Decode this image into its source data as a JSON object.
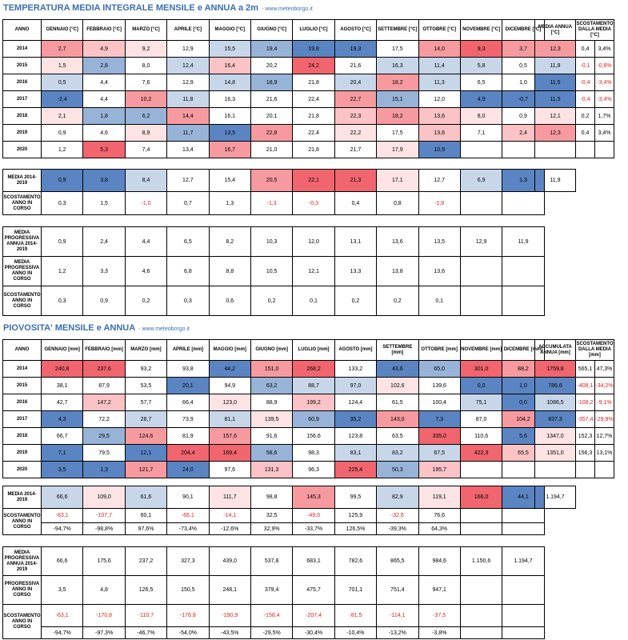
{
  "temp": {
    "title": "TEMPERATURA MEDIA INTEGRALE MENSILE e ANNUA a 2m",
    "source": "- www.meteoborgo.it",
    "headers": [
      "ANNO",
      "GENNAIO [°C]",
      "FEBBRAIO [°C]",
      "MARZO [°C]",
      "APRILE [°C]",
      "MAGGIO [°C]",
      "GIUGNO [°C]",
      "LUGLIO [°C]",
      "AGOSTO [°C]",
      "SETTEMBRE [°C]",
      "OTTOBRE [°C]",
      "NOVEMBRE [°C]",
      "DICEMBRE [°C]"
    ],
    "side_headers": [
      "MEDIA ANNUA [°C]",
      "SCOSTAMENTO DALLA MEDIA [°C]"
    ],
    "rows": [
      {
        "year": "2014",
        "v": [
          "2,7",
          "4,9",
          "9,2",
          "12,9",
          "15,5",
          "19,4",
          "19,8",
          "19,3",
          "17,5",
          "14,0",
          "9,3",
          "3,7"
        ],
        "c": [
          "r2",
          "r1",
          "r0",
          "n",
          "l1",
          "b2",
          "b3",
          "b3",
          "n",
          "r2",
          "r3",
          "r2"
        ],
        "avg": "12,3",
        "avgc": "r2",
        "d": "0,4",
        "p": "3,4%",
        "dn": false
      },
      {
        "year": "2015",
        "v": [
          "1,5",
          "2,8",
          "8,0",
          "12,4",
          "16,4",
          "20,2",
          "24,2",
          "21,6",
          "16,3",
          "11,4",
          "5,8",
          "0,5"
        ],
        "c": [
          "r0",
          "b2",
          "n",
          "l1",
          "r1",
          "n",
          "r3",
          "n",
          "l1",
          "l1",
          "l1",
          "n"
        ],
        "avg": "11,8",
        "avgc": "l1",
        "d": "-0,1",
        "p": "-0,8%",
        "dn": true
      },
      {
        "year": "2016",
        "v": [
          "0,5",
          "4,4",
          "7,6",
          "12,9",
          "14,8",
          "18,9",
          "21,8",
          "20,4",
          "18,2",
          "11,3",
          "6,5",
          "1,0"
        ],
        "c": [
          "l1",
          "n",
          "n",
          "n",
          "l1",
          "b2",
          "n",
          "l1",
          "r2",
          "l1",
          "n",
          "n"
        ],
        "avg": "11,5",
        "avgc": "b3",
        "d": "-0,4",
        "p": "-3,4%",
        "dn": true
      },
      {
        "year": "2017",
        "v": [
          "-2,4",
          "4,4",
          "10,2",
          "11,8",
          "16,3",
          "21,6",
          "22,4",
          "22,7",
          "15,1",
          "12,0",
          "4,9",
          "-0,7"
        ],
        "c": [
          "b3",
          "n",
          "r2",
          "l1",
          "n",
          "n",
          "n",
          "r2",
          "b2",
          "n",
          "b3",
          "b3"
        ],
        "avg": "11,5",
        "avgc": "b3",
        "d": "-0,4",
        "p": "-3,4%",
        "dn": true
      },
      {
        "year": "2018",
        "v": [
          "2,1",
          "1,8",
          "6,2",
          "14,4",
          "16,1",
          "20,1",
          "21,8",
          "22,3",
          "18,2",
          "13,6",
          "8,0",
          "0,9"
        ],
        "c": [
          "r0",
          "b2",
          "b2",
          "r2",
          "n",
          "n",
          "n",
          "r1",
          "r2",
          "r1",
          "r0",
          "n"
        ],
        "avg": "12,1",
        "avgc": "r0",
        "d": "0,2",
        "p": "1,7%",
        "dn": false
      },
      {
        "year": "2019",
        "v": [
          "0,9",
          "4,6",
          "8,9",
          "11,7",
          "13,5",
          "22,8",
          "22,4",
          "22,2",
          "17,5",
          "13,6",
          "7,1",
          "2,4"
        ],
        "c": [
          "n",
          "n",
          "r0",
          "b2",
          "b3",
          "r2",
          "n",
          "r0",
          "n",
          "r1",
          "n",
          "r1"
        ],
        "avg": "12,3",
        "avgc": "r2",
        "d": "0,4",
        "p": "3,4%",
        "dn": false
      },
      {
        "year": "2020",
        "v": [
          "1,2",
          "5,3",
          "7,4",
          "13,4",
          "16,7",
          "21,0",
          "21,8",
          "21,7",
          "17,9",
          "10,9",
          "",
          ""
        ],
        "c": [
          "n",
          "r3",
          "n",
          "n",
          "r2",
          "n",
          "n",
          "n",
          "r0",
          "b3",
          "n",
          "n"
        ],
        "avg": "",
        "avgc": "e",
        "d": "",
        "p": "",
        "dn": false
      }
    ],
    "media": {
      "label": "MEDIA 2014-2019",
      "v": [
        "0,9",
        "3,8",
        "8,4",
        "12,7",
        "15,4",
        "20,5",
        "22,1",
        "21,3",
        "17,1",
        "12,7",
        "6,9",
        "1,3"
      ],
      "c": [
        "b3",
        "b3",
        "l1",
        "n",
        "n",
        "r2",
        "r3",
        "r3",
        "r0",
        "n",
        "l1",
        "b3"
      ],
      "total": "11,9"
    },
    "scost": {
      "label": "SCOSTAMENTO ANNO IN CORSO",
      "v": [
        "0,3",
        "1,5",
        "-1,0",
        "0,7",
        "1,3",
        "-1,3",
        "-0,3",
        "0,4",
        "0,8",
        "-1,8",
        "",
        ""
      ]
    },
    "prog": [
      {
        "label": "MEDIA PROGRESSIVA ANNUA 2014-2019",
        "v": [
          "0,9",
          "2,4",
          "4,4",
          "6,5",
          "8,2",
          "10,3",
          "12,0",
          "13,1",
          "13,6",
          "13,5",
          "12,9",
          "11,9"
        ]
      },
      {
        "label": "MEDIA PROGRESSIVA ANNO IN CORSO",
        "v": [
          "1,2",
          "3,3",
          "4,6",
          "6,8",
          "8,8",
          "10,5",
          "12,1",
          "13,3",
          "13,8",
          "13,6",
          "",
          ""
        ]
      },
      {
        "label": "SCOSTAMENTO ANNO IN CORSO",
        "v": [
          "0,3",
          "0,9",
          "0,2",
          "0,3",
          "0,6",
          "0,2",
          "0,1",
          "0,2",
          "0,2",
          "0,1",
          "",
          ""
        ]
      }
    ]
  },
  "rain": {
    "title": "PIOVOSITA' MENSILE e ANNUA",
    "source": "- www.meteoborgo.it",
    "headers": [
      "ANNO",
      "GENNAIO [mm]",
      "FEBBRAIO [mm]",
      "MARZO [mm]",
      "APRILE [mm]",
      "MAGGIO [mm]",
      "GIUGNO [mm]",
      "LUGLIO [mm]",
      "AGOSTO [mm]",
      "SETTEMBRE [mm]",
      "OTTOBRE [mm]",
      "NOVEMBRE [mm]",
      "DICEMBRE [mm]"
    ],
    "side_headers": [
      "ACCUMULATA ANNUA [mm]",
      "SCOSTAMENTO DALLA MEDIA [mm]"
    ],
    "rows": [
      {
        "year": "2014",
        "v": [
          "240,8",
          "237,6",
          "93,2",
          "93,8",
          "44,2",
          "151,0",
          "268,2",
          "133,2",
          "43,6",
          "65,0",
          "301,0",
          "88,2"
        ],
        "c": [
          "r3",
          "r3",
          "n",
          "n",
          "b3",
          "r2",
          "r3",
          "n",
          "b3",
          "b2",
          "r3",
          "r2"
        ],
        "avg": "1759,8",
        "avgc": "r3",
        "d": "565,1",
        "p": "47,3%",
        "dn": false
      },
      {
        "year": "2015",
        "v": [
          "38,1",
          "87,9",
          "53,5",
          "20,1",
          "94,9",
          "63,2",
          "88,7",
          "97,0",
          "102,6",
          "139,6",
          "0,0",
          "1,0"
        ],
        "c": [
          "n",
          "n",
          "n",
          "b3",
          "n",
          "b2",
          "l1",
          "l1",
          "r0",
          "n",
          "b3",
          "b3"
        ],
        "avg": "786,6",
        "avgc": "b3",
        "d": "-408,1",
        "p": "-34,2%",
        "dn": true
      },
      {
        "year": "2016",
        "v": [
          "42,7",
          "147,2",
          "57,7",
          "66,4",
          "123,0",
          "88,9",
          "199,2",
          "124,4",
          "61,5",
          "100,4",
          "75,1",
          "0,0"
        ],
        "c": [
          "n",
          "r1",
          "n",
          "n",
          "r0",
          "n",
          "r1",
          "n",
          "n",
          "n",
          "l1",
          "b3"
        ],
        "avg": "1086,5",
        "avgc": "l1",
        "d": "-108,2",
        "p": "-9,1%",
        "dn": true
      },
      {
        "year": "2017",
        "v": [
          "4,3",
          "72,2",
          "28,7",
          "73,9",
          "81,1",
          "139,5",
          "60,9",
          "35,2",
          "143,0",
          "7,3",
          "87,0",
          "104,2"
        ],
        "c": [
          "b3",
          "n",
          "l1",
          "n",
          "l1",
          "r0",
          "b2",
          "b3",
          "r2",
          "b3",
          "n",
          "r2"
        ],
        "avg": "837,3",
        "avgc": "b3",
        "d": "-357,4",
        "p": "-29,9%",
        "dn": true
      },
      {
        "year": "2018",
        "v": [
          "66,7",
          "29,5",
          "124,6",
          "81,9",
          "157,6",
          "91,6",
          "156,6",
          "123,8",
          "63,5",
          "335,0",
          "110,6",
          "5,6"
        ],
        "c": [
          "n",
          "b2",
          "r2",
          "n",
          "r2",
          "n",
          "n",
          "n",
          "n",
          "r3",
          "n",
          "b3"
        ],
        "avg": "1347,0",
        "avgc": "r0",
        "d": "152,3",
        "p": "12,7%",
        "dn": false
      },
      {
        "year": "2019",
        "v": [
          "7,1",
          "79,5",
          "12,1",
          "204,4",
          "169,4",
          "58,6",
          "98,3",
          "83,1",
          "83,2",
          "67,5",
          "422,3",
          "65,5"
        ],
        "c": [
          "b3",
          "n",
          "b3",
          "r3",
          "r3",
          "b2",
          "n",
          "l1",
          "l1",
          "l1",
          "r3",
          "r1"
        ],
        "avg": "1351,0",
        "avgc": "r0",
        "d": "156,3",
        "p": "13,1%",
        "dn": false
      },
      {
        "year": "2020",
        "v": [
          "3,5",
          "1,3",
          "121,7",
          "24,0",
          "97,6",
          "131,3",
          "96,3",
          "225,4",
          "50,3",
          "195,7",
          "",
          ""
        ],
        "c": [
          "b3",
          "b3",
          "r2",
          "b3",
          "n",
          "r1",
          "n",
          "r3",
          "b2",
          "r1",
          "n",
          "n"
        ],
        "avg": "",
        "avgc": "e",
        "d": "",
        "p": "",
        "dn": false
      }
    ],
    "media": {
      "label": "MEDIA 2014-2019",
      "v": [
        "66,6",
        "109,0",
        "61,6",
        "90,1",
        "111,7",
        "98,8",
        "145,3",
        "99,5",
        "82,9",
        "119,1",
        "166,0",
        "44,1"
      ],
      "c": [
        "l1",
        "r0",
        "l1",
        "n",
        "r0",
        "n",
        "r2",
        "n",
        "l1",
        "r0",
        "r3",
        "b3"
      ],
      "total": "1.194,7"
    },
    "scost": {
      "label": "SCOSTAMENTO ANNO IN CORSO",
      "v": [
        "-63,1",
        "-107,7",
        "60,1",
        "-66,1",
        "-14,1",
        "32,5",
        "-49,0",
        "125,9",
        "-32,6",
        "76,6",
        "",
        ""
      ],
      "p": [
        "-94,7%",
        "-98,8%",
        "97,6%",
        "-73,4%",
        "-12,6%",
        "32,9%",
        "-33,7%",
        "126,5%",
        "-39,3%",
        "64,3%",
        "",
        ""
      ]
    },
    "prog": [
      {
        "label": "MEDIA PROGRESSIVA ANNUA 2014-2019",
        "v": [
          "66,6",
          "175,6",
          "237,2",
          "327,3",
          "439,0",
          "537,8",
          "683,1",
          "782,6",
          "865,5",
          "984,6",
          "1.150,6",
          "1.194,7"
        ]
      },
      {
        "label": "PROGRESSIVA ANNO IN CORSO",
        "v": [
          "3,5",
          "4,8",
          "126,5",
          "150,5",
          "248,1",
          "379,4",
          "475,7",
          "701,1",
          "751,4",
          "947,1",
          "",
          ""
        ]
      }
    ],
    "prog_scost": {
      "label": "SCOSTAMENTO ANNO IN CORSO",
      "v": [
        "-63,1",
        "-170,8",
        "-110,7",
        "-176,8",
        "-190,9",
        "-158,4",
        "-207,4",
        "-81,5",
        "-114,1",
        "-37,5",
        "",
        ""
      ],
      "p": [
        "-94,7%",
        "-97,3%",
        "-46,7%",
        "-54,0%",
        "-43,5%",
        "-29,5%",
        "-30,4%",
        "-10,4%",
        "-13,2%",
        "-3,8%",
        "",
        ""
      ]
    }
  },
  "palette": {
    "r3": "#f0656e",
    "r2": "#f79a9f",
    "r1": "#fbc3c6",
    "r0": "#fde3e4",
    "n": "#ffffff",
    "l1": "#c8d6ea",
    "b2": "#98b3d8",
    "b3": "#5b84c2",
    "e": "#ffffff"
  }
}
